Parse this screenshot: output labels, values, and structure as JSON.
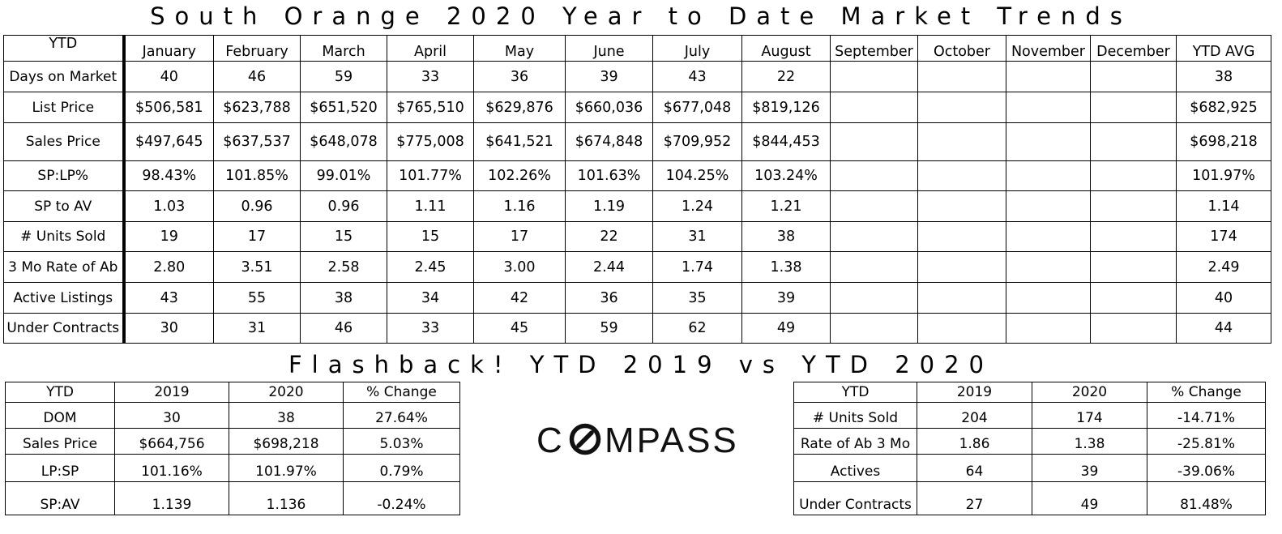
{
  "title": "South Orange 2020 Year to Date Market Trends",
  "main_table": {
    "header": [
      "YTD",
      "January",
      "February",
      "March",
      "April",
      "May",
      "June",
      "July",
      "August",
      "September",
      "October",
      "November",
      "December",
      "YTD AVG"
    ],
    "rows": [
      {
        "label": "Days on Market",
        "values": [
          "40",
          "46",
          "59",
          "33",
          "36",
          "39",
          "43",
          "22",
          "",
          "",
          "",
          "",
          "38"
        ]
      },
      {
        "label": "List Price",
        "values": [
          "$506,581",
          "$623,788",
          "$651,520",
          "$765,510",
          "$629,876",
          "$660,036",
          "$677,048",
          "$819,126",
          "",
          "",
          "",
          "",
          "$682,925"
        ]
      },
      {
        "label": "Sales Price",
        "values": [
          "$497,645",
          "$637,537",
          "$648,078",
          "$775,008",
          "$641,521",
          "$674,848",
          "$709,952",
          "$844,453",
          "",
          "",
          "",
          "",
          "$698,218"
        ]
      },
      {
        "label": "SP:LP%",
        "values": [
          "98.43%",
          "101.85%",
          "99.01%",
          "101.77%",
          "102.26%",
          "101.63%",
          "104.25%",
          "103.24%",
          "",
          "",
          "",
          "",
          "101.97%"
        ]
      },
      {
        "label": "SP to AV",
        "values": [
          "1.03",
          "0.96",
          "0.96",
          "1.11",
          "1.16",
          "1.19",
          "1.24",
          "1.21",
          "",
          "",
          "",
          "",
          "1.14"
        ]
      },
      {
        "label": "# Units Sold",
        "values": [
          "19",
          "17",
          "15",
          "15",
          "17",
          "22",
          "31",
          "38",
          "",
          "",
          "",
          "",
          "174"
        ]
      },
      {
        "label": "3 Mo Rate of Ab",
        "values": [
          "2.80",
          "3.51",
          "2.58",
          "2.45",
          "3.00",
          "2.44",
          "1.74",
          "1.38",
          "",
          "",
          "",
          "",
          "2.49"
        ]
      },
      {
        "label": "Active Listings",
        "values": [
          "43",
          "55",
          "38",
          "34",
          "42",
          "36",
          "35",
          "39",
          "",
          "",
          "",
          "",
          "40"
        ]
      },
      {
        "label": "Under Contracts",
        "values": [
          "30",
          "31",
          "46",
          "33",
          "45",
          "59",
          "62",
          "49",
          "",
          "",
          "",
          "",
          "44"
        ]
      }
    ]
  },
  "flashback_title": "Flashback! YTD 2019 vs YTD 2020",
  "left_table": {
    "header": [
      "YTD",
      "2019",
      "2020",
      "% Change"
    ],
    "rows": [
      [
        "DOM",
        "30",
        "38",
        "27.64%"
      ],
      [
        "Sales Price",
        "$664,756",
        "$698,218",
        "5.03%"
      ],
      [
        "LP:SP",
        "101.16%",
        "101.97%",
        "0.79%"
      ],
      [
        "SP:AV",
        "1.139",
        "1.136",
        "-0.24%"
      ]
    ]
  },
  "right_table": {
    "header": [
      "YTD",
      "2019",
      "2020",
      "% Change"
    ],
    "rows": [
      [
        "# Units Sold",
        "204",
        "174",
        "-14.71%"
      ],
      [
        "Rate of Ab 3 Mo",
        "1.86",
        "1.38",
        "-25.81%"
      ],
      [
        "Actives",
        "64",
        "39",
        "-39.06%"
      ],
      [
        "Under Contracts",
        "27",
        "49",
        "81.48%"
      ]
    ]
  },
  "logo": {
    "text": "COMPASS",
    "icon": "compass-logo-icon"
  }
}
